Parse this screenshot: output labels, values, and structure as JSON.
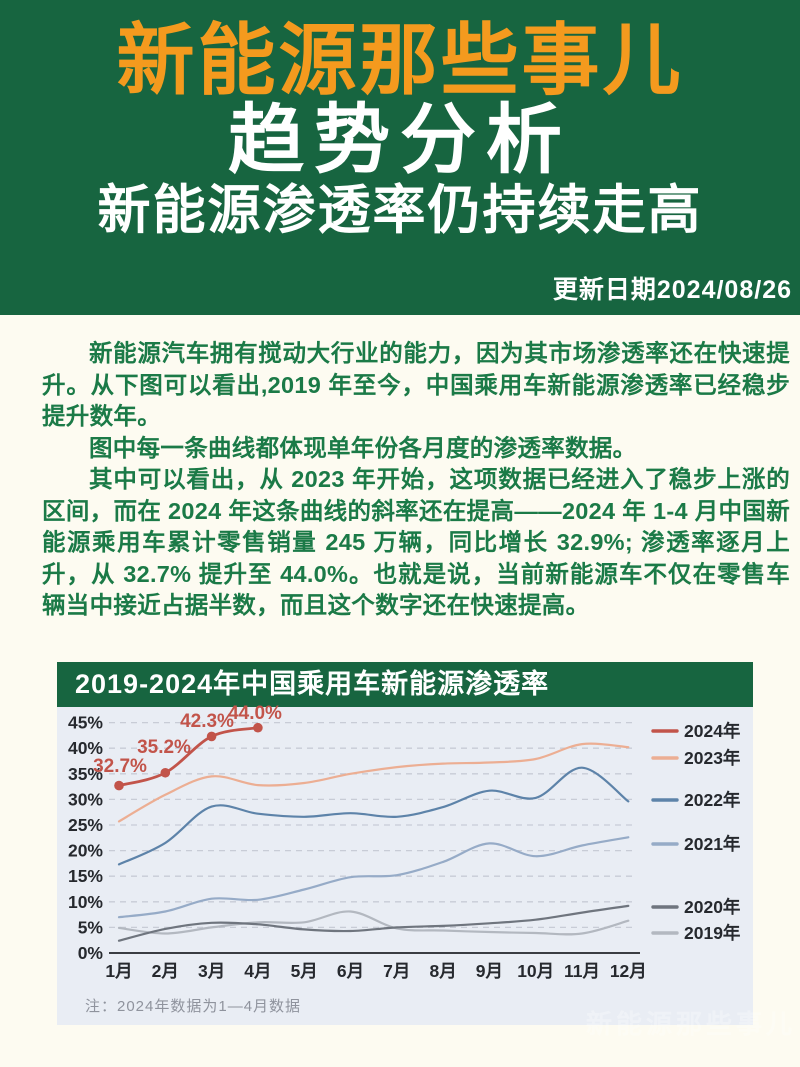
{
  "header": {
    "title": "新能源那些事儿",
    "subtitle": "趋势分析",
    "tagline": "新能源渗透率仍持续走高",
    "date_label": "更新日期2024/08/26",
    "colors": {
      "banner_bg": "#176540",
      "title_orange": "#F49A1E",
      "text_white": "#FFFFFF"
    }
  },
  "body": {
    "text_color": "#1B7A47",
    "paragraphs": [
      "新能源汽车拥有搅动大行业的能力，因为其市场渗透率还在快速提升。从下图可以看出,2019 年至今，中国乘用车新能源渗透率已经稳步提升数年。",
      "图中每一条曲线都体现单年份各月度的渗透率数据。",
      "其中可以看出，从 2023 年开始，这项数据已经进入了稳步上涨的区间，而在 2024 年这条曲线的斜率还在提高——2024 年 1-4 月中国新能源乘用车累计零售销量 245 万辆，同比增长 32.9%; 渗透率逐月上升，从 32.7% 提升至 44.0%。也就是说，当前新能源车不仅在零售车辆当中接近占据半数，而且这个数字还在快速提高。"
    ]
  },
  "chart_data": {
    "type": "line",
    "title": "2019-2024年中国乘用车新能源渗透率",
    "note": "注：2024年数据为1—4月数据",
    "x": [
      "1月",
      "2月",
      "3月",
      "4月",
      "5月",
      "6月",
      "7月",
      "8月",
      "9月",
      "10月",
      "11月",
      "12月"
    ],
    "yticks": [
      0,
      5,
      10,
      15,
      20,
      25,
      30,
      35,
      40,
      45
    ],
    "ylim": [
      0,
      47
    ],
    "unit": "%",
    "grid": "horizontal-dashed",
    "legend_position": "right",
    "colors": {
      "grid": "#C8CCD6",
      "axis": "#3A3D42",
      "tick_text": "#26292E",
      "annotation": "#C2544A"
    },
    "series": [
      {
        "name": "2024年",
        "color": "#C2544A",
        "markers": true,
        "values": [
          32.7,
          35.2,
          42.3,
          44.0
        ],
        "point_labels": [
          "32.7%",
          "35.2%",
          "42.3%",
          "44.0%"
        ]
      },
      {
        "name": "2023年",
        "color": "#ECAE93",
        "markers": false,
        "values": [
          25.7,
          30.9,
          34.5,
          32.8,
          33.2,
          35.0,
          36.3,
          37.0,
          37.2,
          37.9,
          40.8,
          40.2
        ]
      },
      {
        "name": "2022年",
        "color": "#5D83A9",
        "markers": false,
        "values": [
          17.3,
          21.5,
          28.6,
          27.2,
          26.6,
          27.3,
          26.6,
          28.5,
          31.7,
          30.3,
          36.2,
          29.6
        ]
      },
      {
        "name": "2021年",
        "color": "#96ABC7",
        "markers": false,
        "values": [
          7.0,
          8.1,
          10.6,
          10.4,
          12.4,
          14.8,
          15.2,
          17.8,
          21.4,
          18.9,
          21.0,
          22.6
        ]
      },
      {
        "name": "2020年",
        "color": "#6F757E",
        "markers": false,
        "values": [
          2.4,
          4.7,
          5.9,
          5.6,
          4.6,
          4.3,
          5.0,
          5.3,
          5.8,
          6.5,
          7.9,
          9.2
        ]
      },
      {
        "name": "2019年",
        "color": "#B3B8C0",
        "markers": false,
        "values": [
          4.9,
          3.8,
          5.0,
          6.0,
          6.0,
          8.1,
          4.8,
          4.4,
          4.1,
          3.9,
          3.8,
          6.3
        ]
      }
    ]
  },
  "watermark": "新能源那些事儿"
}
